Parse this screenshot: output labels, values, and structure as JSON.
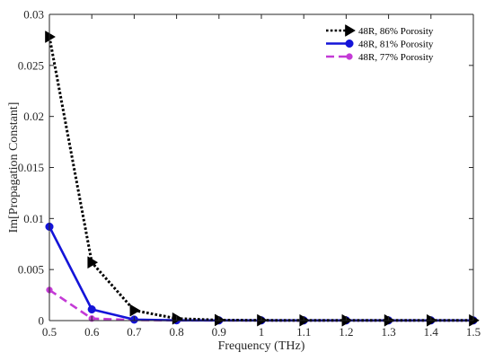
{
  "chart_data": {
    "type": "line",
    "xlabel": "Frequency (THz)",
    "ylabel": "Im[Propagation Constant]",
    "xlim": [
      0.5,
      1.5
    ],
    "ylim": [
      0,
      0.03
    ],
    "xticks": [
      "0.5",
      "0.6",
      "0.7",
      "0.8",
      "0.9",
      "1",
      "1.1",
      "1.2",
      "1.3",
      "1.4",
      "1.5"
    ],
    "yticks": [
      "0",
      "0.005",
      "0.01",
      "0.015",
      "0.02",
      "0.025",
      "0.03"
    ],
    "grid": false,
    "legend_position": "top-right",
    "x": [
      0.5,
      0.6,
      0.7,
      0.8,
      0.9,
      1.0,
      1.1,
      1.2,
      1.3,
      1.4,
      1.5
    ],
    "series": [
      {
        "name": "48R, 86% Porosity",
        "color": "#000000",
        "line_style": "dotted",
        "marker": "triangle-right",
        "values": [
          0.0278,
          0.0057,
          0.001,
          0.0002,
          5e-05,
          3e-05,
          2e-05,
          2e-05,
          2e-05,
          2e-05,
          2e-05
        ]
      },
      {
        "name": "48R, 81% Porosity",
        "color": "#1414d8",
        "line_style": "solid",
        "marker": "circle",
        "values": [
          0.0092,
          0.0011,
          0.0001,
          3e-05,
          2e-05,
          2e-05,
          2e-05,
          2e-05,
          2e-05,
          2e-05,
          2e-05
        ]
      },
      {
        "name": "48R, 77% Porosity",
        "color": "#c43ad6",
        "line_style": "dashed",
        "marker": "circle",
        "values": [
          0.003,
          0.0002,
          5e-05,
          2e-05,
          2e-05,
          2e-05,
          2e-05,
          2e-05,
          2e-05,
          2e-05,
          2e-05
        ]
      }
    ]
  }
}
